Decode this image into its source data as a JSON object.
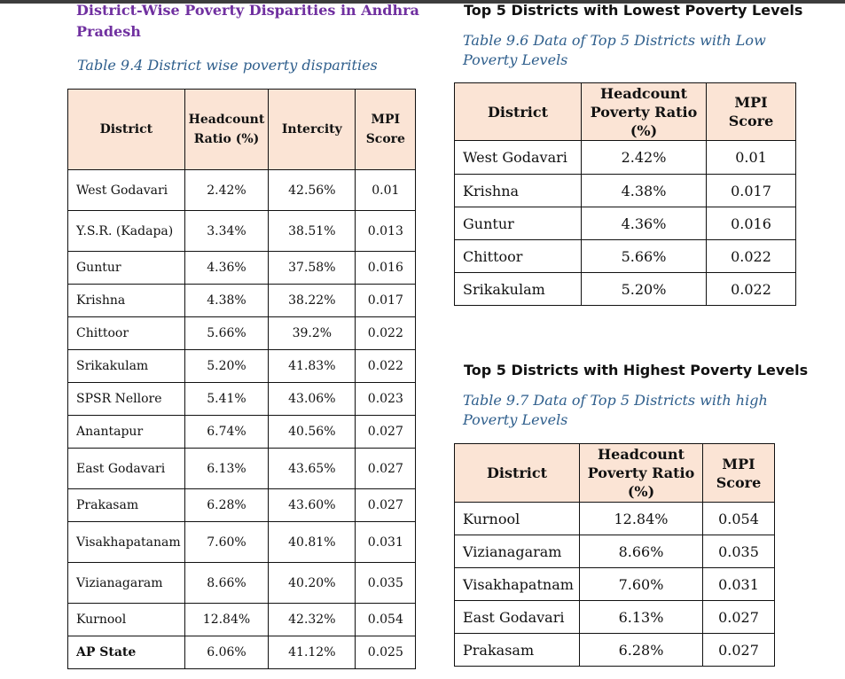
{
  "section": {
    "title": "District-Wise Poverty Disparities in Andhra Pradesh",
    "caption": "Table 9.4 District wise poverty disparities"
  },
  "table_9_4": {
    "headers": [
      "District",
      "Headcount Ratio (%)",
      "Intercity",
      "MPI Score"
    ],
    "rows": [
      [
        "West Godavari",
        "2.42%",
        "42.56%",
        "0.01"
      ],
      [
        "Y.S.R. (Kadapa)",
        "3.34%",
        "38.51%",
        "0.013"
      ],
      [
        "Guntur",
        "4.36%",
        "37.58%",
        "0.016"
      ],
      [
        "Krishna",
        "4.38%",
        "38.22%",
        "0.017"
      ],
      [
        "Chittoor",
        "5.66%",
        "39.2%",
        "0.022"
      ],
      [
        "Srikakulam",
        "5.20%",
        "41.83%",
        "0.022"
      ],
      [
        "SPSR Nellore",
        "5.41%",
        "43.06%",
        "0.023"
      ],
      [
        "Anantapur",
        "6.74%",
        "40.56%",
        "0.027"
      ],
      [
        "East Godavari",
        "6.13%",
        "43.65%",
        "0.027"
      ],
      [
        "Prakasam",
        "6.28%",
        "43.60%",
        "0.027"
      ],
      [
        "Visakhapatanam",
        "7.60%",
        "40.81%",
        "0.031"
      ],
      [
        "Vizianagaram",
        "8.66%",
        "40.20%",
        "0.035"
      ],
      [
        "Kurnool",
        "12.84%",
        "42.32%",
        "0.054"
      ],
      [
        "AP State",
        "6.06%",
        "41.12%",
        "0.025"
      ]
    ]
  },
  "lowest": {
    "title": "Top 5 Districts with Lowest Poverty Levels",
    "caption": "Table 9.6 Data of Top 5 Districts with Low Poverty Levels",
    "headers": [
      "District",
      "Headcount Poverty Ratio (%)",
      "MPI Score"
    ],
    "rows": [
      [
        "West Godavari",
        "2.42%",
        "0.01"
      ],
      [
        "Krishna",
        "4.38%",
        "0.017"
      ],
      [
        "Guntur",
        "4.36%",
        "0.016"
      ],
      [
        "Chittoor",
        "5.66%",
        "0.022"
      ],
      [
        "Srikakulam",
        "5.20%",
        "0.022"
      ]
    ]
  },
  "highest": {
    "title": "Top 5 Districts with Highest Poverty Levels",
    "caption": "Table 9.7 Data of Top 5 Districts with high Poverty Levels",
    "headers": [
      "District",
      "Headcount Poverty Ratio (%)",
      "MPI Score"
    ],
    "rows": [
      [
        "Kurnool",
        "12.84%",
        "0.054"
      ],
      [
        "Vizianagaram",
        "8.66%",
        "0.035"
      ],
      [
        "Visakhapatnam",
        "7.60%",
        "0.031"
      ],
      [
        "East Godavari",
        "6.13%",
        "0.027"
      ],
      [
        "Prakasam",
        "6.28%",
        "0.027"
      ]
    ]
  }
}
